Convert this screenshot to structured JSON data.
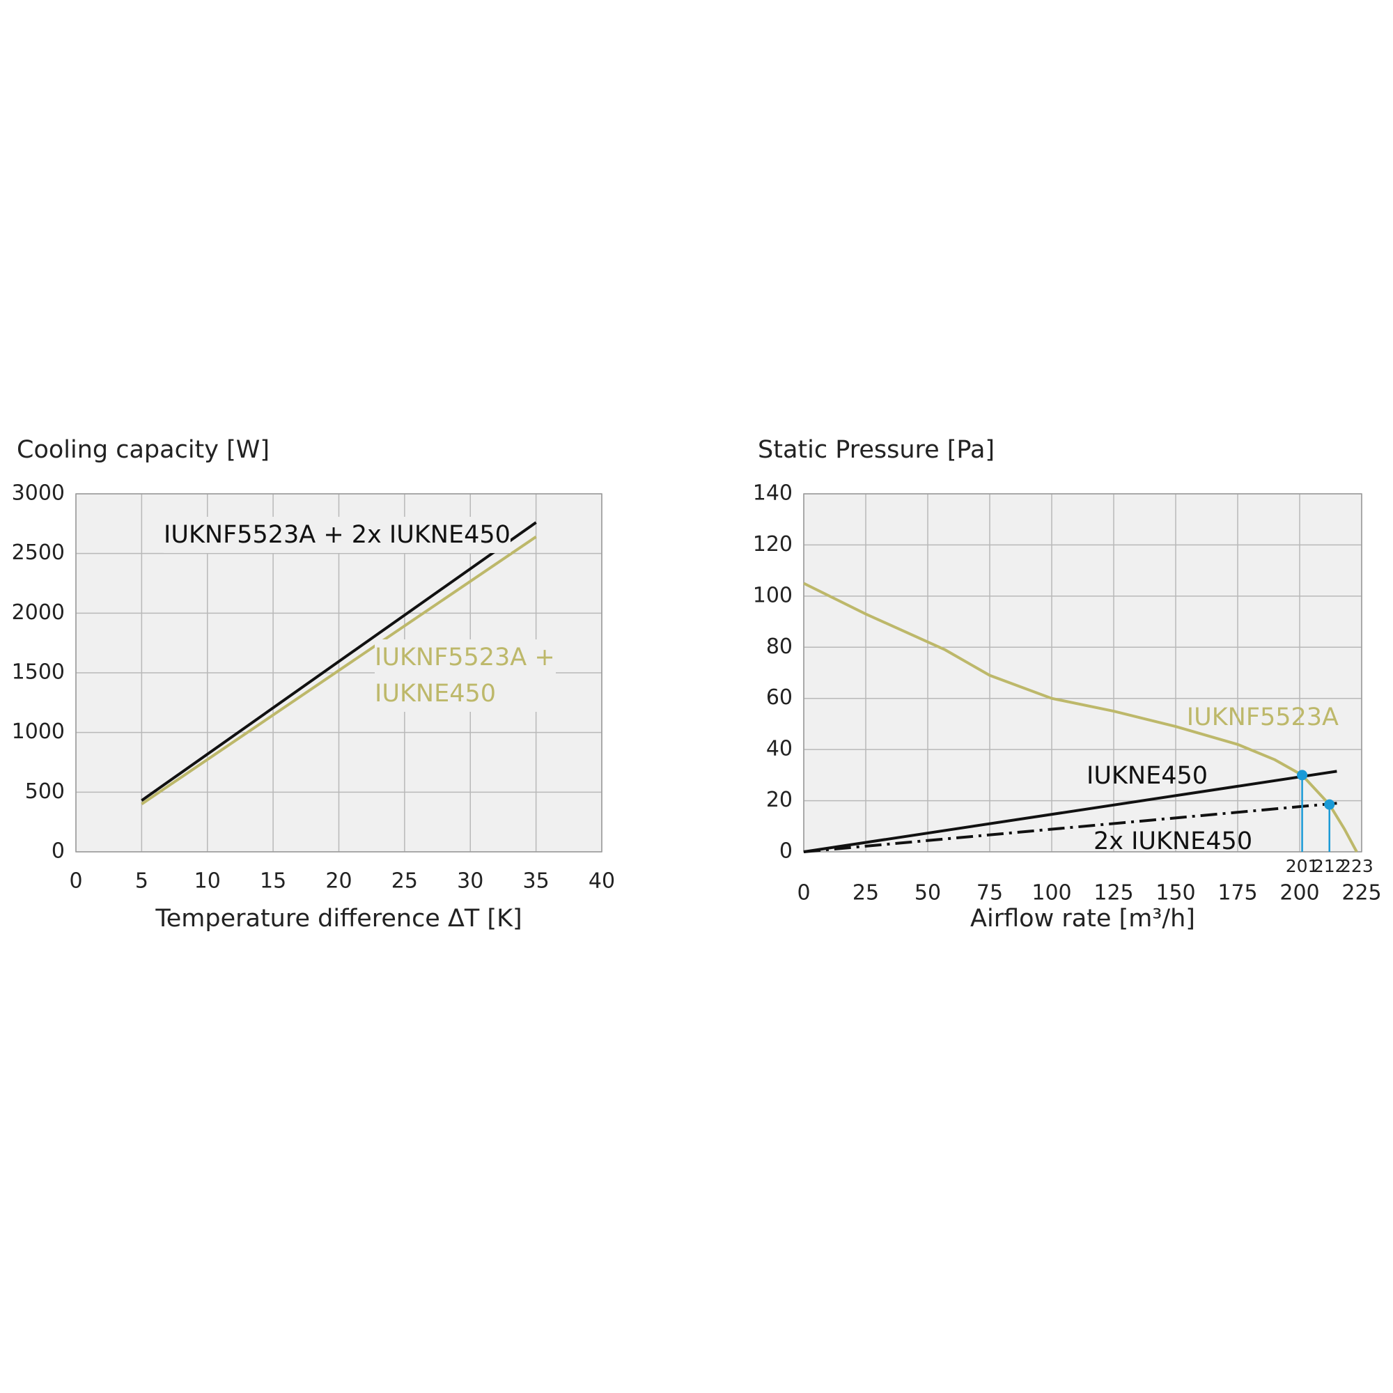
{
  "chart_data": [
    {
      "type": "line",
      "title": "Cooling capacity [W]",
      "x_label": "Temperature difference ΔT [K]",
      "xlim": [
        0,
        40
      ],
      "xticks": [
        0,
        5,
        10,
        15,
        20,
        25,
        30,
        35,
        40
      ],
      "ylim": [
        0,
        3000
      ],
      "yticks": [
        0,
        500,
        1000,
        1500,
        2000,
        2500,
        3000
      ],
      "grid": true,
      "series": [
        {
          "name": "IUKNF5523A + 2x IUKNE450",
          "color": "#111111",
          "linestyle": "solid",
          "x": [
            5,
            35
          ],
          "values": [
            430,
            2760
          ]
        },
        {
          "name": "IUKNF5523A + IUKNE450",
          "color": "#bdb86a",
          "linestyle": "solid",
          "x": [
            5,
            35
          ],
          "values": [
            400,
            2640
          ]
        }
      ]
    },
    {
      "type": "line",
      "title": "Static Pressure [Pa]",
      "x_label": "Airflow rate [m³/h]",
      "xlim": [
        0,
        225
      ],
      "xticks": [
        0,
        25,
        50,
        75,
        100,
        125,
        150,
        175,
        200,
        225
      ],
      "ylim": [
        0,
        140
      ],
      "yticks": [
        0,
        20,
        40,
        60,
        80,
        100,
        120,
        140
      ],
      "grid": true,
      "series": [
        {
          "name": "IUKNF5523A",
          "color": "#bdb86a",
          "linestyle": "solid",
          "x": [
            0,
            25,
            57,
            75,
            100,
            125,
            150,
            175,
            190,
            201,
            212,
            218,
            223
          ],
          "values": [
            105,
            93,
            79,
            69,
            60,
            55,
            49,
            42,
            36,
            30,
            18.5,
            9,
            0
          ]
        },
        {
          "name": "IUKNE450",
          "color": "#111111",
          "linestyle": "solid",
          "x": [
            0,
            215
          ],
          "values": [
            0,
            31.5
          ]
        },
        {
          "name": "2x IUKNE450",
          "color": "#111111",
          "linestyle": "dashdot",
          "x": [
            0,
            215
          ],
          "values": [
            0,
            19
          ]
        }
      ],
      "markers": {
        "color": "#1a9ad6",
        "x": [
          201,
          212
        ],
        "values": [
          30,
          18.5
        ]
      },
      "annotations": [
        201,
        212,
        223
      ]
    }
  ]
}
